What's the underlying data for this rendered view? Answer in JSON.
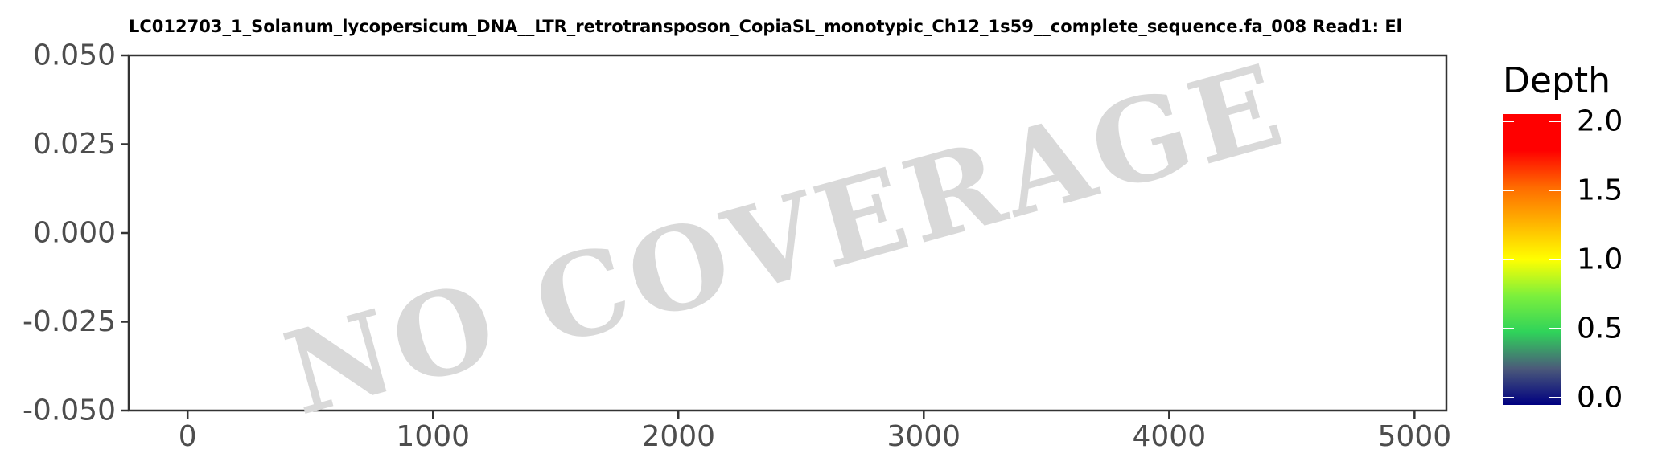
{
  "chart_data": {
    "type": "heatmap",
    "title": "LC012703_1_Solanum_lycopersicum_DNA__LTR_retrotransposon_CopiaSL_monotypic_Ch12_1s59__complete_sequence.fa_008    Read1: El",
    "annotation": "NO COVERAGE",
    "xlim": [
      -240,
      5130
    ],
    "ylim": [
      -0.05,
      0.05
    ],
    "x_ticks": [
      0,
      1000,
      2000,
      3000,
      4000,
      5000
    ],
    "x_tick_labels": [
      "0",
      "1000",
      "2000",
      "3000",
      "4000",
      "5000"
    ],
    "y_ticks": [
      0.05,
      0.025,
      0.0,
      -0.025,
      -0.05
    ],
    "y_tick_labels": [
      "0.050",
      "0.025",
      "0.000",
      "-0.025",
      "-0.050"
    ],
    "grid": false,
    "values": [],
    "legend": {
      "title": "Depth",
      "placement": "right",
      "range": [
        0,
        2
      ],
      "breaks": [
        2.0,
        1.5,
        1.0,
        0.5,
        0.0
      ],
      "break_labels": [
        "2.0",
        "1.5",
        "1.0",
        "0.5",
        "0.0"
      ],
      "colors": [
        "#000080",
        "#4b5a7a",
        "#2fd35a",
        "#7cf03c",
        "#ffff00",
        "#ffb400",
        "#ff6a00",
        "#ff0000",
        "#ff0000"
      ]
    }
  }
}
